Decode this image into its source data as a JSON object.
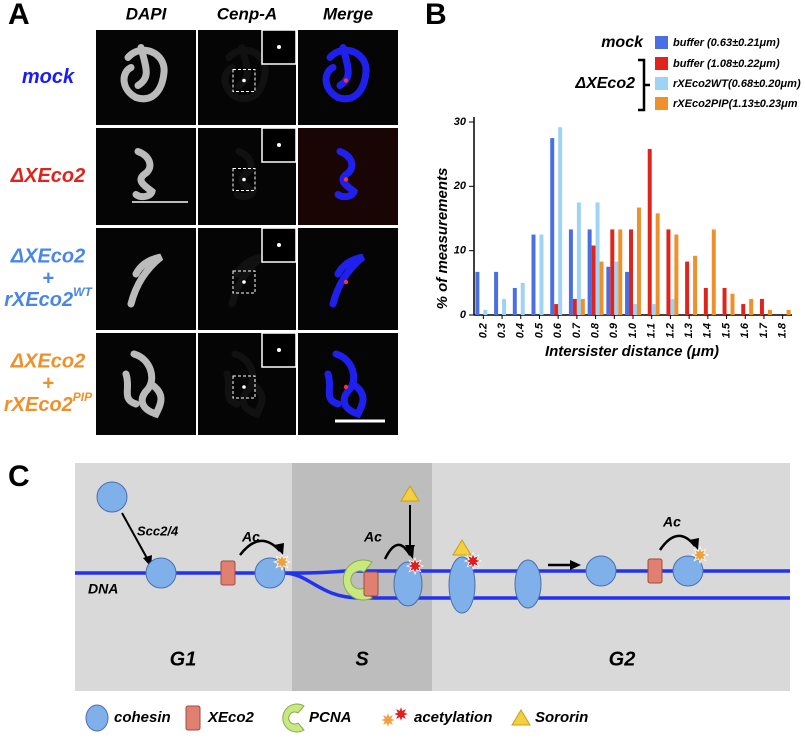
{
  "panel_labels": [
    "A",
    "B",
    "C"
  ],
  "panel_a": {
    "columns": [
      "DAPI",
      "Cenp-A",
      "Merge"
    ],
    "rows": [
      {
        "lines": [
          "mock"
        ],
        "color": "#1a1aff"
      },
      {
        "lines": [
          "ΔXEco2"
        ],
        "color": "#e0241b"
      },
      {
        "lines": [
          "ΔXEco2",
          "+"
        ],
        "main": "rXEco2",
        "sup": "WT",
        "color": "#4a86e8"
      },
      {
        "lines": [
          "ΔXEco2",
          "+"
        ],
        "main": "rXEco2",
        "sup": "PIP",
        "color": "#f0902a"
      }
    ]
  },
  "chart_data": {
    "type": "bar",
    "ylabel": "% of measurements",
    "xlabel": "Intersister distance (μm)",
    "categories": [
      "0.2",
      "0.3",
      "0.4",
      "0.5",
      "0.6",
      "0.7",
      "0.8",
      "0.9",
      "1.0",
      "1.1",
      "1.2",
      "1.3",
      "1.4",
      "1.5",
      "1.6",
      "1.7",
      "1.8"
    ],
    "legend_groups": [
      "mock",
      "ΔXEco2"
    ],
    "series": [
      {
        "name": "buffer (0.63±0.21μm)",
        "color": "#4a6fe3",
        "values": [
          6.7,
          6.7,
          4.2,
          12.5,
          27.5,
          13.3,
          13.3,
          7.5,
          6.7,
          0,
          0,
          0,
          0,
          0,
          0,
          0,
          0
        ]
      },
      {
        "name": "buffer  (1.08±0.22μm)",
        "color": "#e0241b",
        "values": [
          0,
          0,
          0,
          0,
          1.7,
          2.5,
          10.8,
          13.3,
          13.3,
          25.8,
          13.3,
          8.3,
          4.2,
          4.2,
          1.7,
          2.5,
          0
        ]
      },
      {
        "name": "rXEco2WT(0.68±0.20μm)",
        "color": "#9fd3f5",
        "values": [
          0.8,
          2.5,
          5,
          12.5,
          29.2,
          17.5,
          17.5,
          8.3,
          1.7,
          1.7,
          2.5,
          0,
          0,
          0,
          0,
          0,
          0
        ]
      },
      {
        "name": "rXEco2PIP(1.13±0.23μm",
        "color": "#f0902a",
        "values": [
          0,
          0,
          0,
          0,
          0,
          2.5,
          8.3,
          13.3,
          16.7,
          15.8,
          12.5,
          9.2,
          13.3,
          3.3,
          2.5,
          0.8,
          0.8
        ]
      }
    ],
    "ylim": [
      0,
      30
    ],
    "yticks": [
      0,
      10,
      20,
      30
    ]
  },
  "panel_c": {
    "labels": {
      "scc": "Scc2/4",
      "ac": "Ac",
      "dna": "DNA"
    },
    "phases": [
      "G1",
      "S",
      "G2"
    ],
    "legend": [
      "cohesin",
      "XEco2",
      "PCNA",
      "acetylation",
      "Sororin"
    ]
  }
}
